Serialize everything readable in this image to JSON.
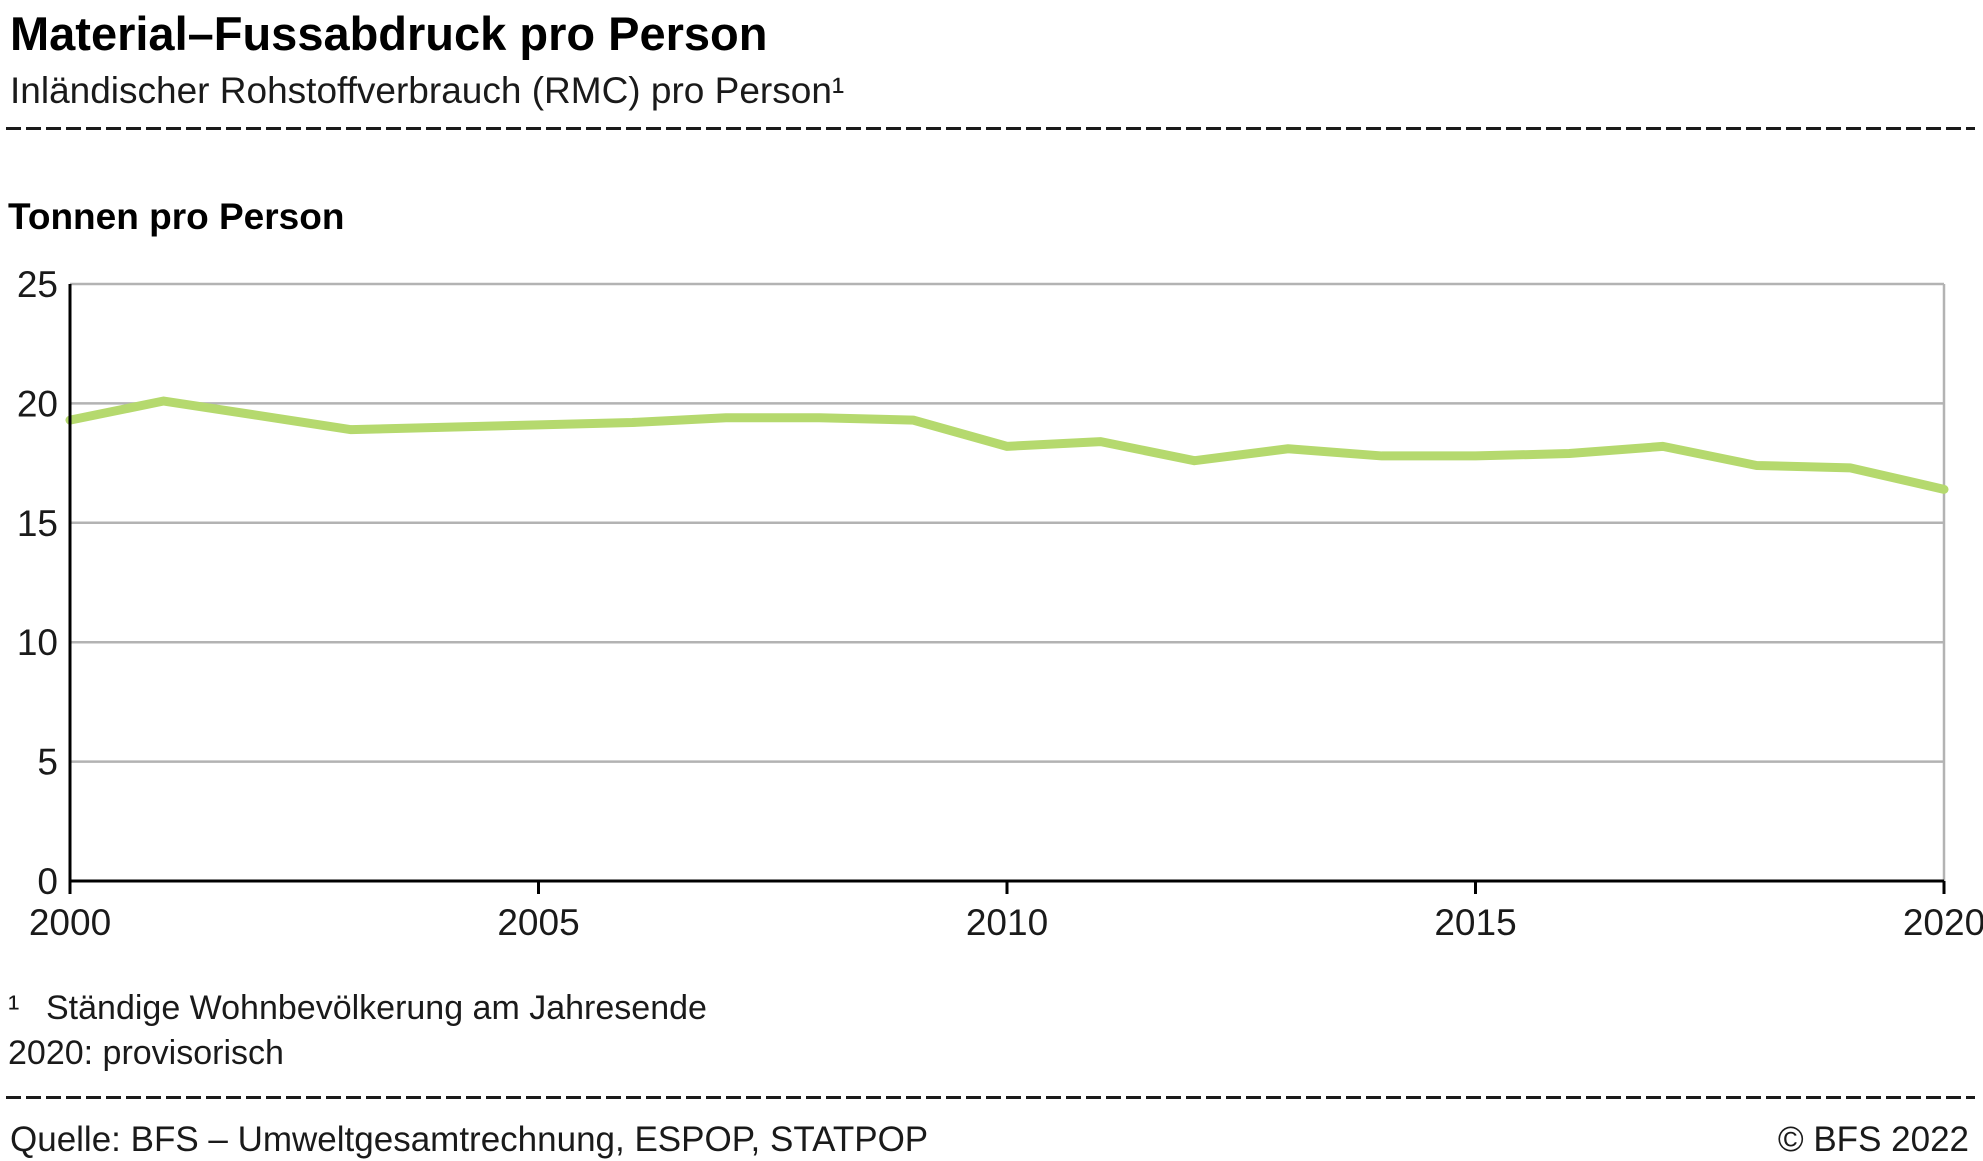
{
  "header": {
    "title": "Material–Fussabdruck pro Person",
    "subtitle": "Inländischer Rohstoffverbrauch (RMC) pro Person¹"
  },
  "chart_data": {
    "type": "line",
    "title": "Material–Fussabdruck pro Person",
    "ylabel": "Tonnen pro Person",
    "xlabel": "",
    "x": [
      2000,
      2001,
      2002,
      2003,
      2004,
      2005,
      2006,
      2007,
      2008,
      2009,
      2010,
      2011,
      2012,
      2013,
      2014,
      2015,
      2016,
      2017,
      2018,
      2019,
      2020
    ],
    "series": [
      {
        "name": "Inländischer Rohstoffverbrauch (RMC) pro Person",
        "values": [
          19.3,
          20.1,
          19.5,
          18.9,
          19.0,
          19.1,
          19.2,
          19.4,
          19.4,
          19.3,
          18.2,
          18.4,
          17.6,
          18.1,
          17.8,
          17.8,
          17.9,
          18.2,
          17.4,
          17.3,
          16.4
        ]
      }
    ],
    "ylim": [
      0,
      25
    ],
    "yticks": [
      0,
      5,
      10,
      15,
      20,
      25
    ],
    "xticks": [
      2000,
      2005,
      2010,
      2015,
      2020
    ],
    "grid": true,
    "legend_position": "none",
    "line_color": "#b5d96e",
    "grid_color": "#b3b3b3",
    "axis_color": "#000000",
    "tick_label_color": "#1a1a1a"
  },
  "footnotes": {
    "marker1": "¹",
    "text1": "Ständige Wohnbevölkerung am Jahresende",
    "text2": "2020: provisorisch"
  },
  "footer": {
    "source": "Quelle: BFS – Umweltgesamtrechnung, ESPOP, STATPOP",
    "copyright": "© BFS 2022"
  }
}
